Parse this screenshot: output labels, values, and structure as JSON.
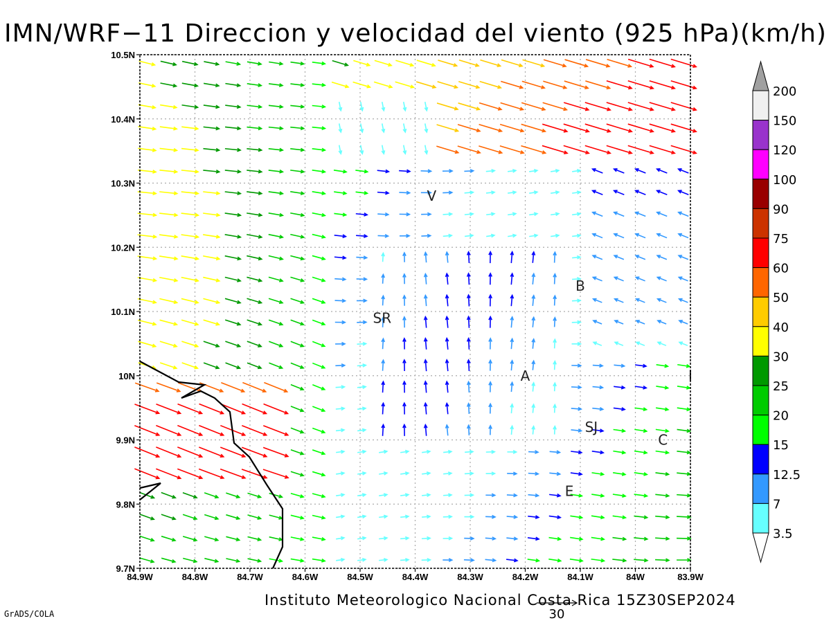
{
  "title": "IMN/WRF−11 Direccion y velocidad del viento (925 hPa)(km/h)",
  "footer": "Instituto Meteorologico Nacional Costa Rica 15Z30SEP2024",
  "software_credit": "GrADS/COLA",
  "reference_vector_label": "30",
  "map": {
    "lon_range": [
      -84.9,
      -83.9
    ],
    "lat_range": [
      9.7,
      10.5
    ],
    "lon_ticks": [
      {
        "value": -84.9,
        "label": "84.9W"
      },
      {
        "value": -84.8,
        "label": "84.8W"
      },
      {
        "value": -84.7,
        "label": "84.7W"
      },
      {
        "value": -84.6,
        "label": "84.6W"
      },
      {
        "value": -84.5,
        "label": "84.5W"
      },
      {
        "value": -84.4,
        "label": "84.4W"
      },
      {
        "value": -84.3,
        "label": "84.3W"
      },
      {
        "value": -84.2,
        "label": "84.2W"
      },
      {
        "value": -84.1,
        "label": "84.1W"
      },
      {
        "value": -84.0,
        "label": "84W"
      },
      {
        "value": -83.9,
        "label": "83.9W"
      }
    ],
    "lat_ticks": [
      {
        "value": 9.7,
        "label": "9.7N"
      },
      {
        "value": 9.8,
        "label": "9.8N"
      },
      {
        "value": 9.9,
        "label": "9.9N"
      },
      {
        "value": 10.0,
        "label": "10N"
      },
      {
        "value": 10.1,
        "label": "10.1N"
      },
      {
        "value": 10.2,
        "label": "10.2N"
      },
      {
        "value": 10.3,
        "label": "10.3N"
      },
      {
        "value": 10.4,
        "label": "10.4N"
      },
      {
        "value": 10.5,
        "label": "10.5N"
      }
    ],
    "grid": true,
    "city_labels": [
      {
        "text": "V",
        "lon": -84.37,
        "lat": 10.28
      },
      {
        "text": "SR",
        "lon": -84.46,
        "lat": 10.09
      },
      {
        "text": "B",
        "lon": -84.1,
        "lat": 10.14
      },
      {
        "text": "A",
        "lon": -84.2,
        "lat": 10.0
      },
      {
        "text": "SJ",
        "lon": -84.08,
        "lat": 9.92
      },
      {
        "text": "C",
        "lon": -83.95,
        "lat": 9.9
      },
      {
        "text": "E",
        "lon": -84.12,
        "lat": 9.82
      },
      {
        "text": "I",
        "lon": -83.9,
        "lat": 10.0
      }
    ]
  },
  "colorbar": {
    "levels": [
      "200",
      "150",
      "120",
      "100",
      "90",
      "75",
      "60",
      "50",
      "40",
      "30",
      "25",
      "20",
      "15",
      "12.5",
      "7",
      "3.5"
    ],
    "colors": [
      "#f0f0f0",
      "#9933cc",
      "#ff00ff",
      "#990000",
      "#cc3300",
      "#ff0000",
      "#ff6600",
      "#ffcc00",
      "#ffff00",
      "#009900",
      "#00cc00",
      "#00ff00",
      "#0000ff",
      "#3399ff",
      "#66ffff"
    ],
    "top_cap_color": "#a0a0a0",
    "bottom_cap_color": "#ffffff"
  }
}
